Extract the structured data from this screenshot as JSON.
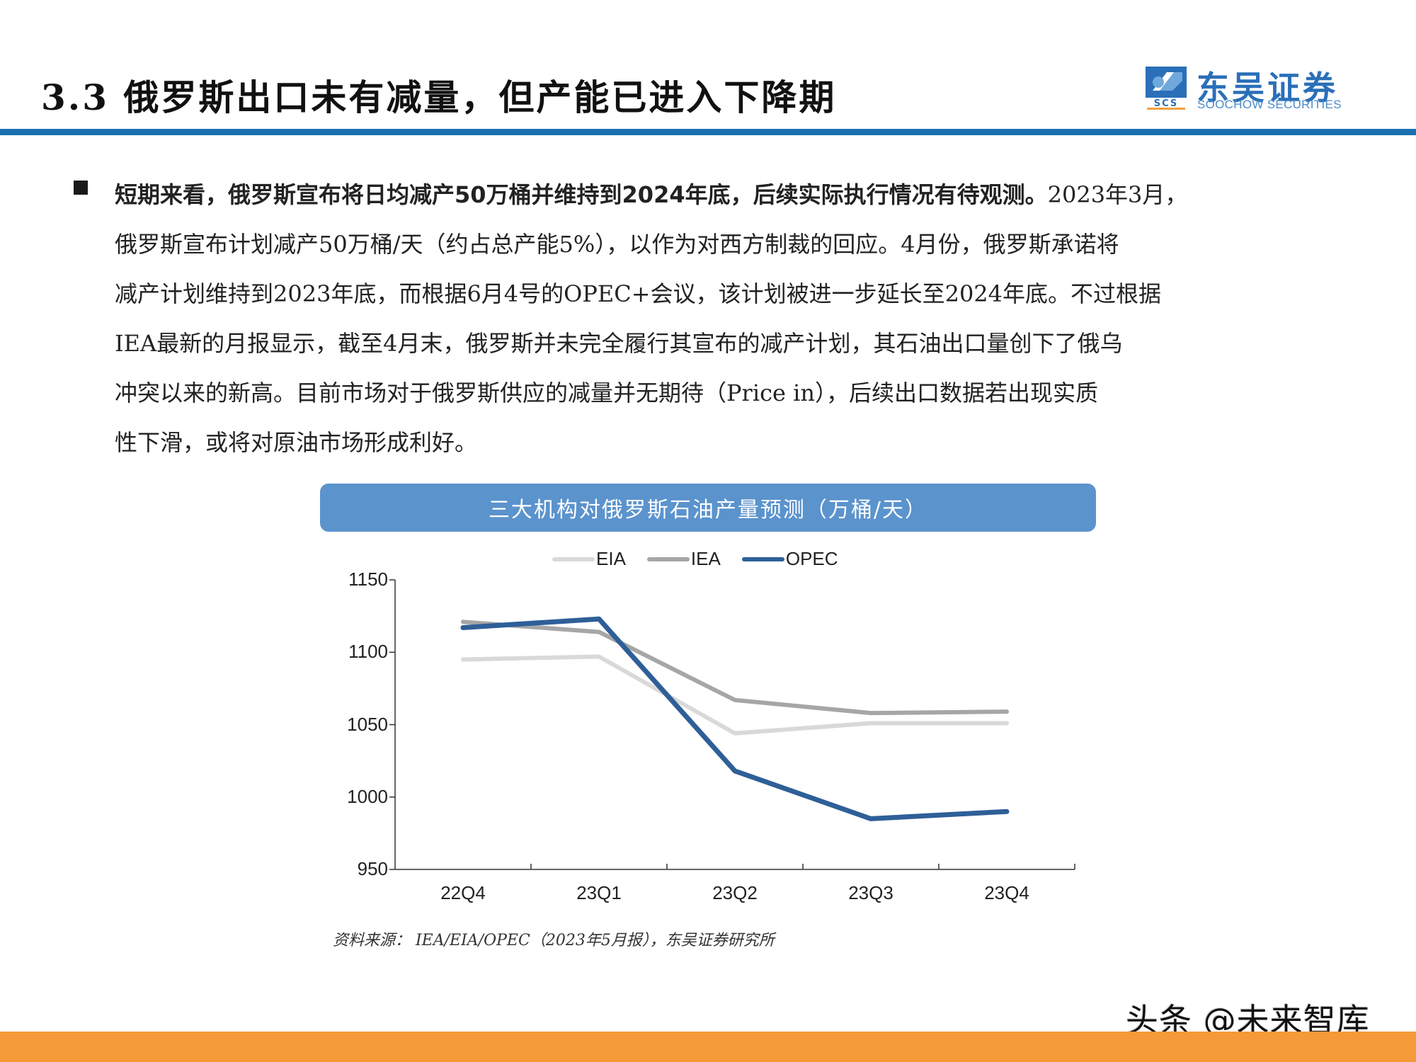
{
  "header": {
    "title": "3.3 俄罗斯出口未有减量，但产能已进入下降期",
    "logo": {
      "cn": "东吴证券",
      "en": "SOOCHOW SECURITIES",
      "mark": "SCS",
      "colors": {
        "primary": "#2a6fb8",
        "light": "#6fa9dc",
        "accent": "#f0a040"
      }
    },
    "rule_color": "#1a6fb0"
  },
  "body": {
    "bullet_icon": "square-bullet-icon",
    "bold_lead": "短期来看，俄罗斯宣布将日均减产50万桶并维持到2024年底，后续实际执行情况有待观测。",
    "lines": [
      "2023年3月，",
      "俄罗斯宣布计划减产50万桶/天（约占总产能5%），以作为对西方制裁的回应。4月份，俄罗斯承诺将",
      "减产计划维持到2023年底，而根据6月4号的OPEC+会议，该计划被进一步延长至2024年底。不过根据",
      "IEA最新的月报显示，截至4月末，俄罗斯并未完全履行其宣布的减产计划，其石油出口量创下了俄乌",
      "冲突以来的新高。目前市场对于俄罗斯供应的减量并无期待（Price in），后续出口数据若出现实质",
      "性下滑，或将对原油市场形成利好。"
    ]
  },
  "chart_data": {
    "type": "line",
    "title": "三大机构对俄罗斯石油产量预测（万桶/天）",
    "categories": [
      "22Q4",
      "23Q1",
      "23Q2",
      "23Q3",
      "23Q4"
    ],
    "series": [
      {
        "name": "EIA",
        "color": "#d9d9d9",
        "values": [
          1095,
          1097,
          1044,
          1051,
          1051
        ]
      },
      {
        "name": "IEA",
        "color": "#a6a6a6",
        "values": [
          1121,
          1114,
          1067,
          1058,
          1059
        ]
      },
      {
        "name": "OPEC",
        "color": "#2e5f98",
        "values": [
          1117,
          1123,
          1018,
          985,
          990
        ]
      }
    ],
    "xlabel": "",
    "ylabel": "",
    "ylim": [
      950,
      1150
    ],
    "yticks": [
      1150,
      1100,
      1050,
      1000,
      950
    ],
    "grid": false,
    "legend_position": "top",
    "banner_color": "#5b93cd"
  },
  "source": "资料来源：  IEA/EIA/OPEC（2023年5月报），东吴证券研究所",
  "watermark": "头条 @未来智库",
  "footer": {
    "color": "#f59a38"
  }
}
